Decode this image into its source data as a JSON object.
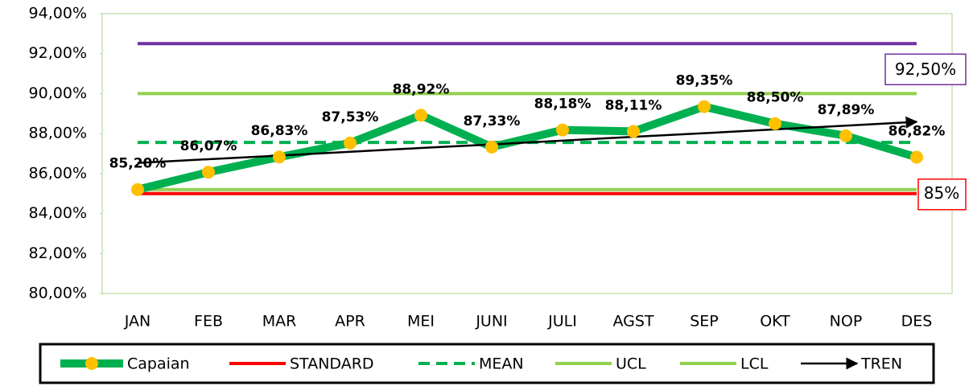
{
  "chart_data": {
    "type": "line",
    "categories": [
      "JAN",
      "FEB",
      "MAR",
      "APR",
      "MEI",
      "JUNI",
      "JULI",
      "AGST",
      "SEP",
      "OKT",
      "NOP",
      "DES"
    ],
    "series": [
      {
        "name": "Capaian",
        "color": "#00b050",
        "marker_color": "#ffc000",
        "values": [
          85.2,
          86.07,
          86.83,
          87.53,
          88.92,
          87.33,
          88.18,
          88.11,
          89.35,
          88.5,
          87.89,
          86.82
        ],
        "value_labels": [
          "85,20%",
          "86,07%",
          "86,83%",
          "87,53%",
          "88,92%",
          "87,33%",
          "88,18%",
          "88,11%",
          "89,35%",
          "88,50%",
          "87,89%",
          "86,82%"
        ]
      },
      {
        "name": "STANDARD",
        "color": "#ff0000",
        "values": [
          85,
          85,
          85,
          85,
          85,
          85,
          85,
          85,
          85,
          85,
          85,
          85
        ],
        "end_label": "85%"
      },
      {
        "name": "MEAN",
        "color": "#00b050",
        "dash": true,
        "values": [
          87.56,
          87.56,
          87.56,
          87.56,
          87.56,
          87.56,
          87.56,
          87.56,
          87.56,
          87.56,
          87.56,
          87.56
        ]
      },
      {
        "name": "UCL",
        "color": "#92d050",
        "values": [
          90,
          90,
          90,
          90,
          90,
          90,
          90,
          90,
          90,
          90,
          90,
          90
        ]
      },
      {
        "name": "LCL",
        "color": "#92d050",
        "values": [
          85.2,
          85.2,
          85.2,
          85.2,
          85.2,
          85.2,
          85.2,
          85.2,
          85.2,
          85.2,
          85.2,
          85.2
        ]
      },
      {
        "name": "TREN",
        "color": "#000000",
        "arrow": true,
        "values": [
          86.53,
          86.72,
          86.9,
          87.09,
          87.28,
          87.46,
          87.65,
          87.84,
          88.02,
          88.21,
          88.4,
          88.59
        ]
      }
    ],
    "reference_lines": [
      {
        "value": 92.5,
        "label": "92,50%",
        "color": "#7030a0"
      }
    ],
    "ylim": [
      80,
      94
    ],
    "yticks": [
      {
        "value": 80,
        "label": "80,00%"
      },
      {
        "value": 82,
        "label": "82,00%"
      },
      {
        "value": 84,
        "label": "84,00%"
      },
      {
        "value": 86,
        "label": "86,00%"
      },
      {
        "value": 88,
        "label": "88,00%"
      },
      {
        "value": 90,
        "label": "90,00%"
      },
      {
        "value": 92,
        "label": "92,00%"
      },
      {
        "value": 94,
        "label": "94,00%"
      }
    ],
    "grid": false,
    "legend": "bottom"
  }
}
